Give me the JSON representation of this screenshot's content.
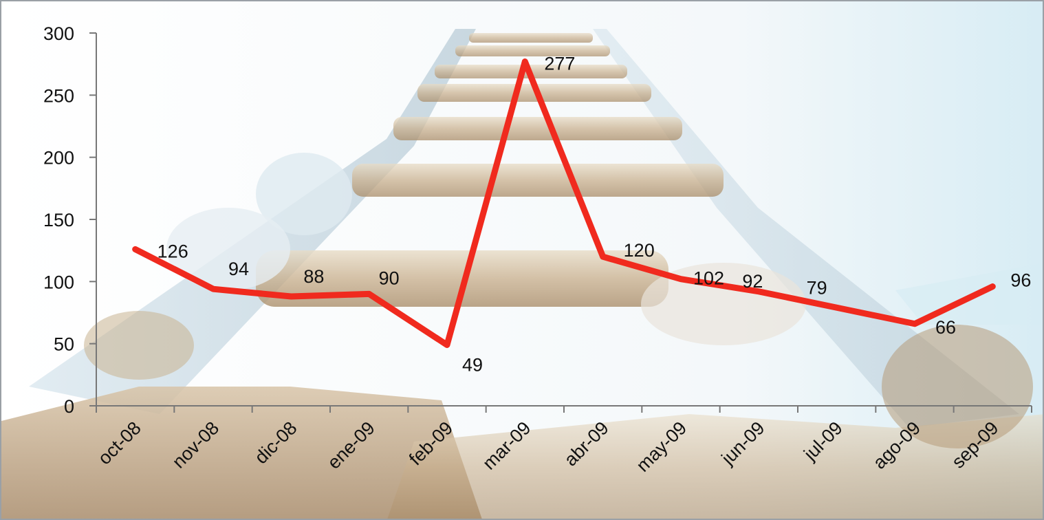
{
  "chart_data": {
    "type": "line",
    "title": "",
    "xlabel": "",
    "ylabel": "",
    "categories": [
      "oct-08",
      "nov-08",
      "dic-08",
      "ene-09",
      "feb-09",
      "mar-09",
      "abr-09",
      "may-09",
      "jun-09",
      "jul-09",
      "ago-09",
      "sep-09"
    ],
    "series": [
      {
        "values": [
          126,
          94,
          88,
          90,
          49,
          277,
          120,
          102,
          92,
          79,
          66,
          96
        ],
        "color": "#f02a1e"
      }
    ],
    "ylim": [
      0,
      300
    ],
    "yticks": [
      0,
      50,
      100,
      150,
      200,
      250,
      300
    ],
    "grid": false,
    "legend": "none",
    "data_labels": true,
    "background": "photo of a wooden ladder held by hands"
  }
}
